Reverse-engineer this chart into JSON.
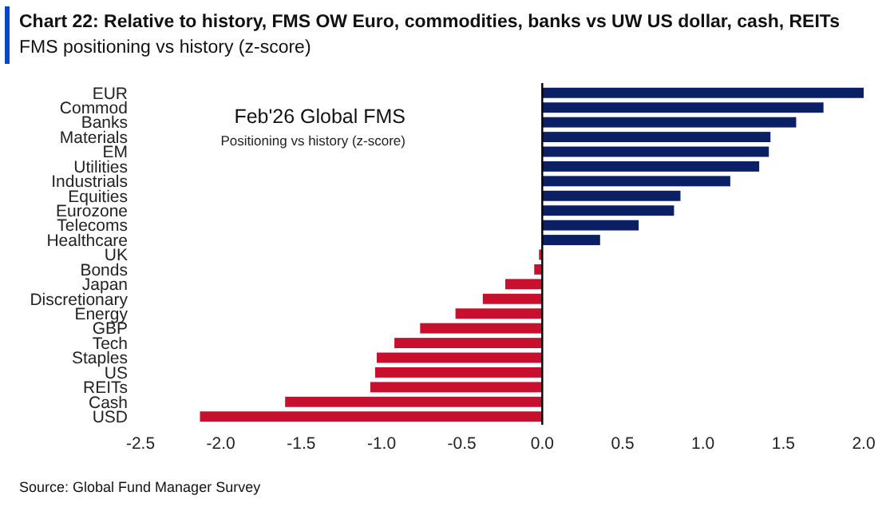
{
  "chart_data": {
    "type": "bar",
    "orientation": "horizontal",
    "title": "Chart 22: Relative to history, FMS OW Euro, commodities, banks vs UW US dollar, cash, REITs",
    "subtitle": "FMS positioning vs history (z-score)",
    "categories": [
      "EUR",
      "Commod",
      "Banks",
      "Materials",
      "EM",
      "Utilities",
      "Industrials",
      "Equities",
      "Eurozone",
      "Telecoms",
      "Healthcare",
      "UK",
      "Bonds",
      "Japan",
      "Discretionary",
      "Energy",
      "GBP",
      "Tech",
      "Staples",
      "US",
      "REITs",
      "Cash",
      "USD"
    ],
    "values": [
      2.0,
      1.75,
      1.58,
      1.42,
      1.41,
      1.35,
      1.17,
      0.86,
      0.82,
      0.6,
      0.36,
      -0.02,
      -0.05,
      -0.23,
      -0.37,
      -0.54,
      -0.76,
      -0.92,
      -1.03,
      -1.04,
      -1.07,
      -1.6,
      -2.13
    ],
    "colors": [
      "#0b1f65",
      "#0b1f65",
      "#0b1f65",
      "#0b1f65",
      "#0b1f65",
      "#0b1f65",
      "#0b1f65",
      "#0b1f65",
      "#0b1f65",
      "#0b1f65",
      "#0b1f65",
      "#c8102e",
      "#c8102e",
      "#c8102e",
      "#c8102e",
      "#c8102e",
      "#c8102e",
      "#c8102e",
      "#c8102e",
      "#c8102e",
      "#c8102e",
      "#c8102e",
      "#c8102e"
    ],
    "xlim": [
      -2.5,
      2.0
    ],
    "xticks": [
      {
        "value": -2.5,
        "label": "-2.5"
      },
      {
        "value": -2,
        "label": "-2.0"
      },
      {
        "value": -1.5,
        "label": "-1.5"
      },
      {
        "value": -1,
        "label": "-1.0"
      },
      {
        "value": -0.5,
        "label": "-0.5"
      },
      {
        "value": 0,
        "label": "0.0"
      },
      {
        "value": 0.5,
        "label": "0.5"
      },
      {
        "value": 1,
        "label": "1.0"
      },
      {
        "value": 1.5,
        "label": "1.5"
      },
      {
        "value": 2,
        "label": "2.0"
      }
    ],
    "annotations": [
      "Feb'26 Global FMS",
      "Positioning vs history (z-score)",
      "Source: Global Fund Manager Survey"
    ]
  }
}
